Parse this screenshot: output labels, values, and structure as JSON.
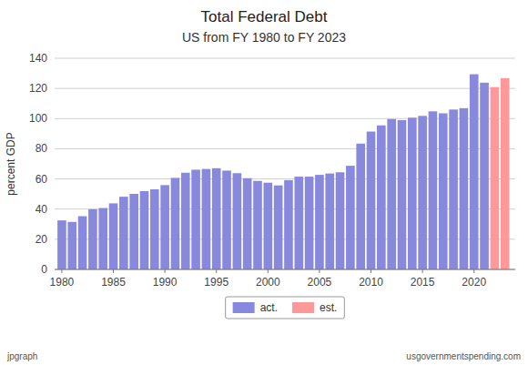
{
  "chart_data": {
    "type": "bar",
    "title": "Total Federal Debt",
    "subtitle": "US from FY 1980 to FY 2023",
    "y_label": "percent GDP",
    "annotations": [
      "jpgraph",
      "usgovernmentspending.com"
    ],
    "x": [
      1980,
      1981,
      1982,
      1983,
      1984,
      1985,
      1986,
      1987,
      1988,
      1989,
      1990,
      1991,
      1992,
      1993,
      1994,
      1995,
      1996,
      1997,
      1998,
      1999,
      2000,
      2001,
      2002,
      2003,
      2004,
      2005,
      2006,
      2007,
      2008,
      2009,
      2010,
      2011,
      2012,
      2013,
      2014,
      2015,
      2016,
      2017,
      2018,
      2019,
      2020,
      2021,
      2022,
      2023
    ],
    "series": [
      {
        "name": "act.",
        "color": "#8888dd",
        "values": [
          32.5,
          31.5,
          35.3,
          39.9,
          40.7,
          43.8,
          48.2,
          50.1,
          51.9,
          53.1,
          55.9,
          60.7,
          64.1,
          66.1,
          66.6,
          67.1,
          65.5,
          63.8,
          60.5,
          58.7,
          57.5,
          55.7,
          59.2,
          61.5,
          61.5,
          62.7,
          63.6,
          64.4,
          68.7,
          83.4,
          91.4,
          95.5,
          99.7,
          99.0,
          100.6,
          101.8,
          104.8,
          103.5,
          106.0,
          106.9,
          129.4,
          123.8,
          null,
          null
        ]
      },
      {
        "name": "est.",
        "color": "#ff9999",
        "values": [
          null,
          null,
          null,
          null,
          null,
          null,
          null,
          null,
          null,
          null,
          null,
          null,
          null,
          null,
          null,
          null,
          null,
          null,
          null,
          null,
          null,
          null,
          null,
          null,
          null,
          null,
          null,
          null,
          null,
          null,
          null,
          null,
          null,
          null,
          null,
          null,
          null,
          null,
          null,
          null,
          null,
          null,
          120.9,
          126.8
        ]
      }
    ],
    "xlim": [
      1979.3,
      2024.0
    ],
    "xticks": [
      1980,
      1985,
      1990,
      1995,
      2000,
      2005,
      2010,
      2015,
      2020
    ],
    "ylim": [
      0,
      140
    ],
    "yticks": [
      0,
      20,
      40,
      60,
      80,
      100,
      120,
      140
    ],
    "grid": true,
    "legend": "bottom"
  }
}
